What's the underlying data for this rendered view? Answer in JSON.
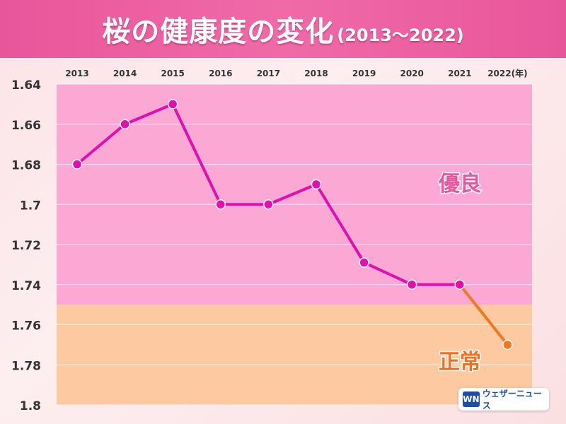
{
  "header": {
    "title": "桜の健康度の変化",
    "subtitle": "(2013〜2022)"
  },
  "logo": {
    "mark": "WN",
    "text": "ウェザーニュース"
  },
  "colors": {
    "line_main": "#e010b0",
    "line_forecast": "#f07820",
    "zone_good": "#fba8d5",
    "zone_normal": "#fdc9a0",
    "label_good": "#e8559a",
    "label_normal": "#f07020"
  },
  "chart_data": {
    "type": "line",
    "title": "桜の健康度の変化",
    "subtitle": "(2013〜2022)",
    "x_labels": [
      "2013",
      "2014",
      "2015",
      "2016",
      "2017",
      "2018",
      "2019",
      "2020",
      "2021",
      "2022(年)"
    ],
    "x": [
      2013,
      2014,
      2015,
      2016,
      2017,
      2018,
      2019,
      2020,
      2021,
      2022
    ],
    "y": [
      1.68,
      1.66,
      1.65,
      1.7,
      1.7,
      1.69,
      1.729,
      1.74,
      1.74,
      1.77
    ],
    "y_ticks": [
      "1.64",
      "1.66",
      "1.68",
      "1.7",
      "1.72",
      "1.74",
      "1.76",
      "1.78",
      "1.8"
    ],
    "ylim": [
      1.64,
      1.8
    ],
    "y_inverted": true,
    "grid": true,
    "zones": [
      {
        "label": "優良",
        "from": 1.64,
        "to": 1.75
      },
      {
        "label": "正常",
        "from": 1.75,
        "to": 1.8
      }
    ]
  }
}
